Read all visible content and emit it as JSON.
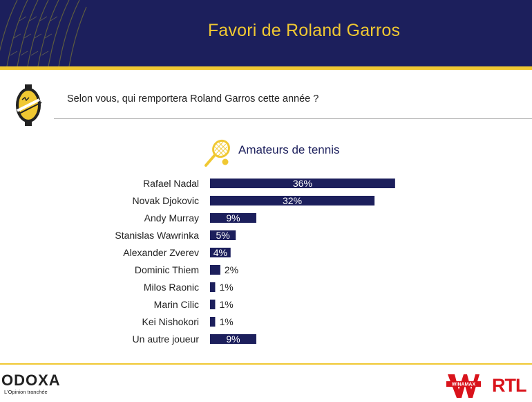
{
  "header": {
    "title": "Favori de Roland Garros"
  },
  "question": "Selon vous, qui remportera Roland Garros cette année ?",
  "chart_data": {
    "type": "bar",
    "orientation": "horizontal",
    "title": "Amateurs de tennis",
    "categories": [
      "Rafael Nadal",
      "Novak Djokovic",
      "Andy Murray",
      "Stanislas Wawrinka",
      "Alexander Zverev",
      "Dominic Thiem",
      "Milos Raonic",
      "Marin Cilic",
      "Kei Nishokori",
      "Un autre joueur"
    ],
    "values": [
      36,
      32,
      9,
      5,
      4,
      2,
      1,
      1,
      1,
      9
    ],
    "value_suffix": "%",
    "bar_color": "#1c1f5c",
    "grid": false
  },
  "footer": {
    "brand": "ODOXA",
    "tagline": "L'Opinion tranchée",
    "partner1": "WINAMAX",
    "partner2": "RTL"
  },
  "colors": {
    "navy": "#1c1f5c",
    "gold": "#f0c832",
    "red": "#d9131b"
  }
}
